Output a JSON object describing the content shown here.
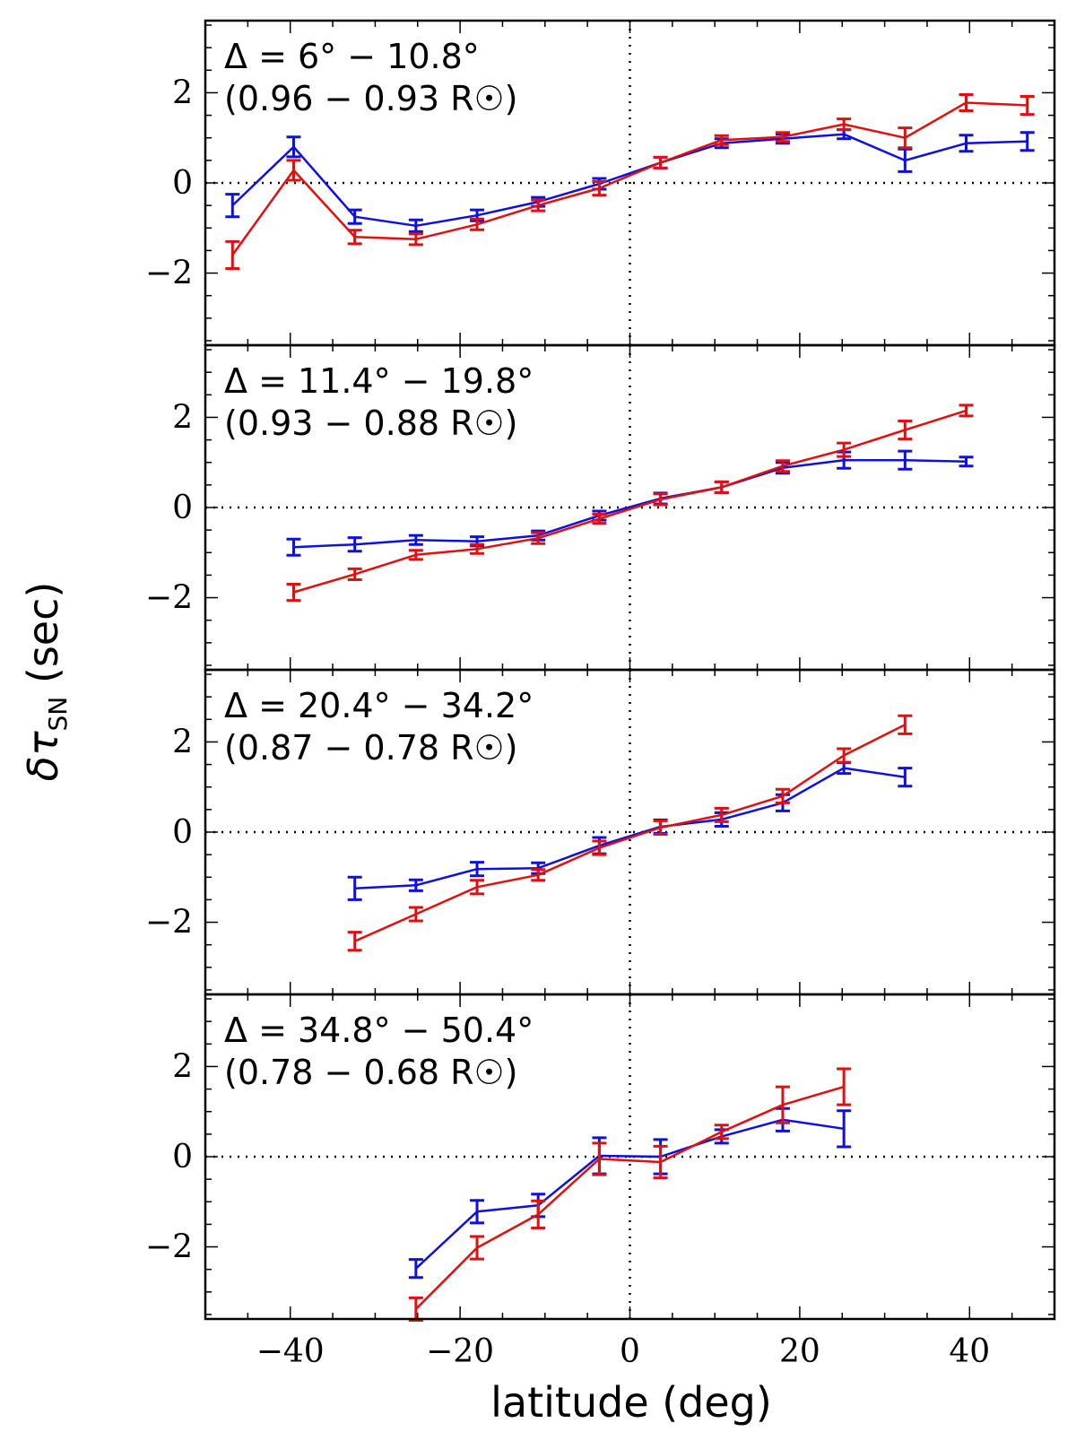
{
  "chart_data": {
    "type": "line",
    "xlabel": "latitude (deg)",
    "ylabel": "δτ",
    "ylabel_subscript": "SN",
    "ylabel_unit": " (sec)",
    "xlim": [
      -50,
      50
    ],
    "ylim": [
      -3.6,
      3.6
    ],
    "xticks": [
      -40,
      -20,
      0,
      20,
      40
    ],
    "xtick_labels": [
      "−40",
      "−20",
      "0",
      "20",
      "40"
    ],
    "yticks": [
      -2,
      0,
      2
    ],
    "ytick_labels": [
      "−2",
      "0",
      "2"
    ],
    "colors": {
      "series_blue": "#1010dd",
      "series_red": "#e01010"
    },
    "panels": [
      {
        "title_line1": "Δ = 6° − 10.8°",
        "title_line2": "(0.96 − 0.93 R☉)",
        "series": [
          {
            "name": "blue",
            "color": "#1010dd",
            "x": [
              -46.8,
              -39.6,
              -32.4,
              -25.2,
              -18.0,
              -10.8,
              -3.6,
              3.6,
              10.8,
              18.0,
              25.2,
              32.4,
              39.6,
              46.8
            ],
            "y": [
              -0.5,
              0.8,
              -0.75,
              -0.95,
              -0.72,
              -0.42,
              -0.02,
              0.45,
              0.88,
              0.98,
              1.08,
              0.5,
              0.88,
              0.92
            ],
            "err": [
              0.25,
              0.22,
              0.15,
              0.13,
              0.12,
              0.1,
              0.12,
              0.12,
              0.1,
              0.1,
              0.1,
              0.25,
              0.18,
              0.2
            ]
          },
          {
            "name": "red",
            "color": "#e01010",
            "x": [
              -46.8,
              -39.6,
              -32.4,
              -25.2,
              -18.0,
              -10.8,
              -3.6,
              3.6,
              10.8,
              18.0,
              25.2,
              32.4,
              39.6,
              46.8
            ],
            "y": [
              -1.6,
              0.28,
              -1.2,
              -1.25,
              -0.92,
              -0.5,
              -0.12,
              0.45,
              0.95,
              1.02,
              1.3,
              1.0,
              1.78,
              1.72
            ],
            "err": [
              0.3,
              0.22,
              0.15,
              0.12,
              0.12,
              0.12,
              0.15,
              0.12,
              0.1,
              0.1,
              0.12,
              0.22,
              0.18,
              0.2
            ]
          }
        ]
      },
      {
        "title_line1": "Δ = 11.4° − 19.8°",
        "title_line2": "(0.93 − 0.88 R☉)",
        "series": [
          {
            "name": "blue",
            "color": "#1010dd",
            "x": [
              -39.6,
              -32.4,
              -25.2,
              -18.0,
              -10.8,
              -3.6,
              3.6,
              10.8,
              18.0,
              25.2,
              32.4,
              39.6
            ],
            "y": [
              -0.88,
              -0.82,
              -0.72,
              -0.75,
              -0.62,
              -0.18,
              0.2,
              0.45,
              0.88,
              1.05,
              1.05,
              1.02
            ],
            "err": [
              0.18,
              0.15,
              0.1,
              0.1,
              0.1,
              0.1,
              0.12,
              0.12,
              0.12,
              0.18,
              0.2,
              0.1
            ]
          },
          {
            "name": "red",
            "color": "#e01010",
            "x": [
              -39.6,
              -32.4,
              -25.2,
              -18.0,
              -10.8,
              -3.6,
              3.6,
              10.8,
              18.0,
              25.2,
              32.4,
              39.6
            ],
            "y": [
              -1.88,
              -1.48,
              -1.05,
              -0.92,
              -0.68,
              -0.25,
              0.18,
              0.45,
              0.92,
              1.28,
              1.72,
              2.15
            ],
            "err": [
              0.18,
              0.12,
              0.1,
              0.1,
              0.12,
              0.1,
              0.12,
              0.12,
              0.12,
              0.15,
              0.2,
              0.12
            ]
          }
        ]
      },
      {
        "title_line1": "Δ = 20.4° − 34.2°",
        "title_line2": "(0.87 − 0.78 R☉)",
        "series": [
          {
            "name": "blue",
            "color": "#1010dd",
            "x": [
              -32.4,
              -25.2,
              -18.0,
              -10.8,
              -3.6,
              3.6,
              10.8,
              18.0,
              25.2,
              32.4
            ],
            "y": [
              -1.25,
              -1.18,
              -0.82,
              -0.8,
              -0.3,
              0.12,
              0.28,
              0.65,
              1.42,
              1.22
            ],
            "err": [
              0.25,
              0.12,
              0.15,
              0.12,
              0.18,
              0.15,
              0.15,
              0.18,
              0.12,
              0.2
            ]
          },
          {
            "name": "red",
            "color": "#e01010",
            "x": [
              -32.4,
              -25.2,
              -18.0,
              -10.8,
              -3.6,
              3.6,
              10.8,
              18.0,
              25.2,
              32.4
            ],
            "y": [
              -2.42,
              -1.82,
              -1.22,
              -0.95,
              -0.35,
              0.1,
              0.38,
              0.8,
              1.7,
              2.38
            ],
            "err": [
              0.2,
              0.15,
              0.15,
              0.12,
              0.15,
              0.15,
              0.15,
              0.15,
              0.15,
              0.2
            ]
          }
        ]
      },
      {
        "title_line1": "Δ = 34.8° − 50.4°",
        "title_line2": "(0.78 − 0.68 R☉)",
        "series": [
          {
            "name": "blue",
            "color": "#1010dd",
            "x": [
              -25.2,
              -18.0,
              -10.8,
              -3.6,
              3.6,
              10.8,
              18.0,
              25.2
            ],
            "y": [
              -2.48,
              -1.22,
              -1.08,
              0.02,
              0.0,
              0.45,
              0.82,
              0.62
            ],
            "err": [
              0.2,
              0.25,
              0.25,
              0.4,
              0.38,
              0.15,
              0.25,
              0.4
            ]
          },
          {
            "name": "red",
            "color": "#e01010",
            "x": [
              -25.2,
              -18.0,
              -10.8,
              -3.6,
              3.6,
              10.8,
              18.0,
              25.2
            ],
            "y": [
              -3.38,
              -2.02,
              -1.28,
              -0.05,
              -0.12,
              0.55,
              1.15,
              1.55
            ],
            "err": [
              0.25,
              0.25,
              0.3,
              0.35,
              0.35,
              0.15,
              0.4,
              0.4
            ]
          }
        ]
      }
    ]
  }
}
